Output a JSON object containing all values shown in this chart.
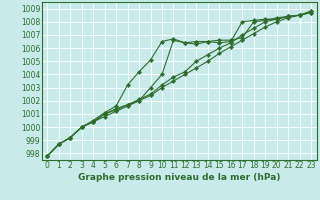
{
  "xlabel": "Graphe pression niveau de la mer (hPa)",
  "bg_color": "#c8eaea",
  "grid_color": "#ffffff",
  "line_color": "#2d6e2d",
  "xlim": [
    -0.5,
    23.5
  ],
  "ylim": [
    997.5,
    1009.5
  ],
  "yticks": [
    998,
    999,
    1000,
    1001,
    1002,
    1003,
    1004,
    1005,
    1006,
    1007,
    1008,
    1009
  ],
  "xticks": [
    0,
    1,
    2,
    3,
    4,
    5,
    6,
    7,
    8,
    9,
    10,
    11,
    12,
    13,
    14,
    15,
    16,
    17,
    18,
    19,
    20,
    21,
    22,
    23
  ],
  "lines": [
    [
      997.8,
      998.7,
      999.2,
      1000.0,
      1000.4,
      1000.8,
      1001.2,
      1001.6,
      1002.0,
      1003.0,
      1004.0,
      1006.6,
      1006.4,
      1006.3,
      1006.5,
      1006.4,
      1006.5,
      1008.0,
      1008.1,
      1008.2,
      1008.2,
      1008.4,
      1008.5,
      1008.7
    ],
    [
      997.8,
      998.7,
      999.2,
      1000.0,
      1000.5,
      1001.1,
      1001.6,
      1003.2,
      1004.2,
      1005.1,
      1006.5,
      1006.7,
      1006.4,
      1006.5,
      1006.5,
      1006.6,
      1006.6,
      1006.8,
      1008.0,
      1008.1,
      1008.3,
      1008.4,
      1008.5,
      1008.8
    ],
    [
      997.8,
      998.7,
      999.2,
      1000.0,
      1000.4,
      1001.0,
      1001.4,
      1001.7,
      1002.1,
      1002.5,
      1003.2,
      1003.8,
      1004.2,
      1005.0,
      1005.5,
      1006.0,
      1006.4,
      1007.0,
      1007.5,
      1008.0,
      1008.2,
      1008.4,
      1008.5,
      1008.8
    ],
    [
      997.8,
      998.7,
      999.2,
      1000.0,
      1000.4,
      1001.0,
      1001.3,
      1001.7,
      1002.0,
      1002.4,
      1003.0,
      1003.5,
      1004.0,
      1004.5,
      1005.0,
      1005.6,
      1006.1,
      1006.6,
      1007.1,
      1007.6,
      1008.0,
      1008.3,
      1008.5,
      1008.7
    ]
  ],
  "tick_fontsize": 5.5,
  "xlabel_fontsize": 6.5,
  "linewidth": 0.8,
  "markersize": 2.2
}
